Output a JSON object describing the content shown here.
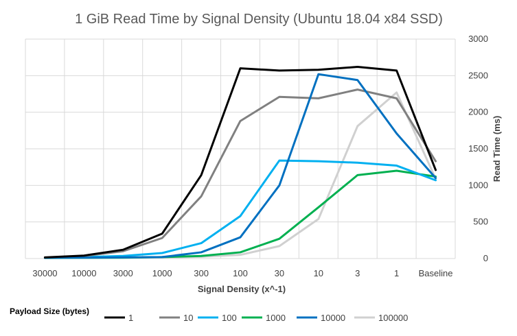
{
  "chart_data": {
    "type": "line",
    "title": "1 GiB Read Time by Signal Density (Ubuntu 18.04 x84 SSD)",
    "xlabel": "Signal Density (x^-1)",
    "ylabel": "Read Time (ms)",
    "categories": [
      "30000",
      "10000",
      "3000",
      "1000",
      "300",
      "100",
      "30",
      "10",
      "3",
      "1",
      "Baseline"
    ],
    "ylim": [
      0,
      3000
    ],
    "yticks": [
      "0",
      "500",
      "1000",
      "1500",
      "2000",
      "2500",
      "3000"
    ],
    "y_axis_side": "right",
    "grid": true,
    "legend": {
      "title": "Payload Size (bytes)",
      "placement": "bottom"
    },
    "series": [
      {
        "name": "1",
        "color": "#000000",
        "values": [
          15,
          40,
          120,
          340,
          1140,
          2600,
          2570,
          2580,
          2620,
          2570,
          1210
        ]
      },
      {
        "name": "10",
        "color": "#808080",
        "values": [
          12,
          35,
          100,
          280,
          850,
          1880,
          2210,
          2190,
          2310,
          2190,
          1330
        ]
      },
      {
        "name": "100",
        "color": "#00b0f0",
        "values": [
          10,
          20,
          35,
          75,
          210,
          580,
          1340,
          1330,
          1310,
          1270,
          1070
        ]
      },
      {
        "name": "1000",
        "color": "#00b050",
        "values": [
          8,
          10,
          12,
          20,
          35,
          85,
          270,
          700,
          1140,
          1200,
          1120
        ]
      },
      {
        "name": "10000",
        "color": "#0070c0",
        "values": [
          10,
          12,
          15,
          20,
          85,
          290,
          1000,
          2520,
          2440,
          1710,
          1100
        ]
      },
      {
        "name": "100000",
        "color": "#d0d0d0",
        "values": [
          5,
          8,
          10,
          15,
          25,
          50,
          170,
          540,
          1810,
          2270,
          1090
        ]
      }
    ]
  }
}
